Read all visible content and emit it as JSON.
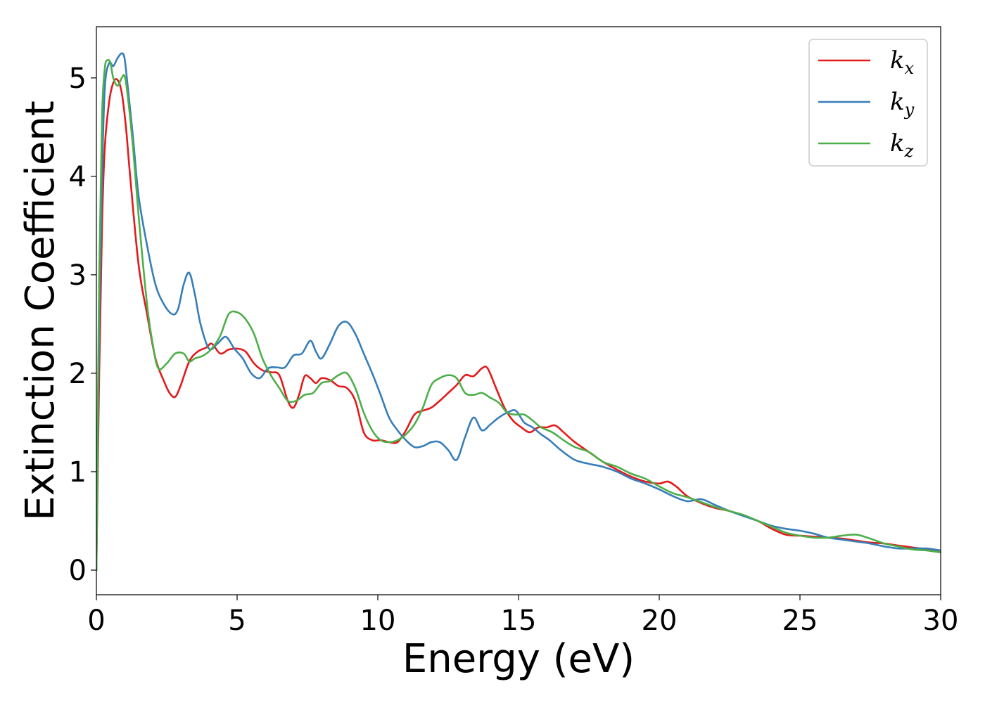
{
  "chart_data": {
    "type": "line",
    "xlabel": "Energy (eV)",
    "ylabel": "Extinction Coefficient",
    "xlim": [
      0,
      30
    ],
    "ylim": [
      -0.25,
      5.52
    ],
    "xticks": [
      0,
      5,
      10,
      15,
      20,
      25,
      30
    ],
    "yticks": [
      0,
      1,
      2,
      3,
      4,
      5
    ],
    "grid": false,
    "legend_position": "top-right",
    "series": [
      {
        "name": "k_x",
        "label_base": "k",
        "label_sub": "x",
        "color": "#e41a1c",
        "x": [
          0,
          0.1,
          0.2,
          0.3,
          0.45,
          0.6,
          0.75,
          0.9,
          1.05,
          1.2,
          1.5,
          1.8,
          2.1,
          2.4,
          2.6,
          2.8,
          3.0,
          3.3,
          3.6,
          3.9,
          4.1,
          4.4,
          4.7,
          5.0,
          5.3,
          5.6,
          5.9,
          6.2,
          6.5,
          6.8,
          7.0,
          7.2,
          7.4,
          7.6,
          7.8,
          8.0,
          8.3,
          8.6,
          8.9,
          9.2,
          9.5,
          9.8,
          10.1,
          10.4,
          10.7,
          11.0,
          11.3,
          11.6,
          11.9,
          12.2,
          12.5,
          12.8,
          13.1,
          13.4,
          13.7,
          13.9,
          14.2,
          14.5,
          14.8,
          15.1,
          15.4,
          15.7,
          16.0,
          16.3,
          16.6,
          17.0,
          17.5,
          18.0,
          18.5,
          19.0,
          19.5,
          20.0,
          20.3,
          20.6,
          21.0,
          21.5,
          22.0,
          22.5,
          23.0,
          23.5,
          24.0,
          24.5,
          25.0,
          25.5,
          26.0,
          26.5,
          27.0,
          27.5,
          28.0,
          28.5,
          29.0,
          29.5,
          30.0
        ],
        "y": [
          0.0,
          2.0,
          3.5,
          4.3,
          4.75,
          4.95,
          4.98,
          4.85,
          4.5,
          4.0,
          3.1,
          2.6,
          2.15,
          1.92,
          1.8,
          1.76,
          1.88,
          2.12,
          2.22,
          2.26,
          2.3,
          2.2,
          2.24,
          2.25,
          2.22,
          2.1,
          2.03,
          2.01,
          1.98,
          1.72,
          1.65,
          1.78,
          1.97,
          1.95,
          1.9,
          1.95,
          1.93,
          1.87,
          1.85,
          1.72,
          1.4,
          1.32,
          1.32,
          1.3,
          1.3,
          1.42,
          1.58,
          1.62,
          1.65,
          1.72,
          1.8,
          1.88,
          1.98,
          1.97,
          2.05,
          2.05,
          1.85,
          1.65,
          1.52,
          1.45,
          1.4,
          1.45,
          1.45,
          1.47,
          1.4,
          1.3,
          1.2,
          1.1,
          1.02,
          0.95,
          0.9,
          0.88,
          0.9,
          0.85,
          0.75,
          0.68,
          0.63,
          0.6,
          0.55,
          0.5,
          0.42,
          0.36,
          0.35,
          0.34,
          0.33,
          0.32,
          0.3,
          0.28,
          0.27,
          0.25,
          0.23,
          0.21,
          0.18
        ]
      },
      {
        "name": "k_y",
        "label_base": "k",
        "label_sub": "y",
        "color": "#377eb8",
        "x": [
          0,
          0.1,
          0.2,
          0.3,
          0.45,
          0.6,
          0.75,
          0.9,
          1.0,
          1.1,
          1.3,
          1.5,
          1.8,
          2.1,
          2.4,
          2.7,
          2.9,
          3.1,
          3.3,
          3.5,
          3.7,
          4.0,
          4.3,
          4.6,
          4.9,
          5.2,
          5.5,
          5.8,
          6.1,
          6.4,
          6.7,
          7.0,
          7.3,
          7.6,
          7.8,
          8.0,
          8.3,
          8.6,
          8.9,
          9.2,
          9.5,
          9.8,
          10.1,
          10.4,
          10.7,
          11.0,
          11.3,
          11.6,
          11.9,
          12.2,
          12.5,
          12.8,
          13.1,
          13.4,
          13.7,
          14.0,
          14.3,
          14.6,
          14.9,
          15.2,
          15.5,
          15.8,
          16.1,
          16.5,
          17.0,
          17.5,
          18.0,
          18.5,
          19.0,
          19.5,
          20.0,
          20.5,
          21.0,
          21.5,
          22.0,
          22.5,
          23.0,
          23.5,
          24.0,
          24.5,
          25.0,
          25.5,
          26.0,
          26.5,
          27.0,
          27.5,
          28.0,
          28.5,
          29.0,
          29.5,
          30.0
        ],
        "y": [
          0.0,
          2.5,
          4.0,
          4.9,
          5.15,
          5.12,
          5.2,
          5.25,
          5.2,
          4.95,
          4.4,
          3.8,
          3.3,
          2.9,
          2.7,
          2.6,
          2.65,
          2.9,
          3.02,
          2.8,
          2.5,
          2.25,
          2.3,
          2.37,
          2.25,
          2.15,
          2.0,
          1.95,
          2.05,
          2.06,
          2.06,
          2.18,
          2.2,
          2.33,
          2.22,
          2.15,
          2.3,
          2.48,
          2.52,
          2.4,
          2.2,
          2.0,
          1.78,
          1.55,
          1.42,
          1.32,
          1.25,
          1.26,
          1.3,
          1.3,
          1.22,
          1.12,
          1.35,
          1.55,
          1.42,
          1.48,
          1.55,
          1.6,
          1.62,
          1.5,
          1.45,
          1.38,
          1.32,
          1.22,
          1.12,
          1.08,
          1.05,
          1.0,
          0.93,
          0.88,
          0.82,
          0.75,
          0.7,
          0.72,
          0.66,
          0.6,
          0.55,
          0.5,
          0.45,
          0.42,
          0.4,
          0.37,
          0.33,
          0.31,
          0.29,
          0.27,
          0.24,
          0.22,
          0.22,
          0.22,
          0.2
        ]
      },
      {
        "name": "k_z",
        "label_base": "k",
        "label_sub": "z",
        "color": "#4daf4a",
        "x": [
          0,
          0.1,
          0.2,
          0.3,
          0.4,
          0.5,
          0.6,
          0.75,
          0.9,
          1.0,
          1.1,
          1.3,
          1.5,
          1.8,
          2.0,
          2.2,
          2.5,
          2.8,
          3.1,
          3.3,
          3.5,
          3.8,
          4.1,
          4.4,
          4.7,
          5.0,
          5.3,
          5.6,
          5.9,
          6.2,
          6.5,
          6.8,
          7.1,
          7.4,
          7.7,
          8.0,
          8.3,
          8.6,
          8.9,
          9.2,
          9.5,
          9.8,
          10.1,
          10.4,
          10.7,
          11.0,
          11.3,
          11.6,
          11.9,
          12.2,
          12.5,
          12.8,
          13.1,
          13.4,
          13.7,
          14.0,
          14.3,
          14.6,
          14.9,
          15.2,
          15.5,
          15.8,
          16.2,
          16.6,
          17.0,
          17.5,
          18.0,
          18.5,
          19.0,
          19.5,
          20.0,
          20.5,
          21.0,
          21.5,
          22.0,
          22.5,
          23.0,
          23.5,
          24.0,
          24.5,
          25.0,
          25.5,
          26.0,
          26.5,
          27.0,
          27.5,
          28.0,
          28.5,
          29.0,
          29.5,
          30.0
        ],
        "y": [
          0.0,
          3.0,
          4.6,
          5.1,
          5.18,
          5.15,
          5.0,
          4.92,
          5.0,
          5.02,
          4.85,
          4.3,
          3.6,
          2.7,
          2.3,
          2.05,
          2.1,
          2.2,
          2.2,
          2.12,
          2.15,
          2.18,
          2.25,
          2.38,
          2.6,
          2.62,
          2.55,
          2.4,
          2.15,
          1.98,
          1.85,
          1.72,
          1.72,
          1.78,
          1.8,
          1.9,
          1.92,
          1.98,
          2.0,
          1.85,
          1.6,
          1.42,
          1.32,
          1.3,
          1.32,
          1.38,
          1.48,
          1.65,
          1.88,
          1.95,
          1.98,
          1.95,
          1.8,
          1.78,
          1.8,
          1.75,
          1.7,
          1.6,
          1.58,
          1.58,
          1.52,
          1.45,
          1.4,
          1.32,
          1.25,
          1.2,
          1.1,
          1.05,
          0.98,
          0.93,
          0.85,
          0.78,
          0.74,
          0.69,
          0.64,
          0.6,
          0.56,
          0.5,
          0.44,
          0.38,
          0.35,
          0.33,
          0.33,
          0.35,
          0.36,
          0.32,
          0.27,
          0.24,
          0.21,
          0.2,
          0.18
        ]
      }
    ]
  }
}
